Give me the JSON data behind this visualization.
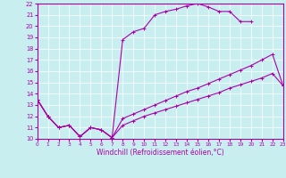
{
  "xlabel": "Windchill (Refroidissement éolien,°C)",
  "xlim": [
    0,
    23
  ],
  "ylim": [
    10,
    22
  ],
  "xticks": [
    0,
    1,
    2,
    3,
    4,
    5,
    6,
    7,
    8,
    9,
    10,
    11,
    12,
    13,
    14,
    15,
    16,
    17,
    18,
    19,
    20,
    21,
    22,
    23
  ],
  "yticks": [
    10,
    11,
    12,
    13,
    14,
    15,
    16,
    17,
    18,
    19,
    20,
    21,
    22
  ],
  "line_color": "#aa00aa",
  "bg_color": "#c8eef0",
  "line1_x": [
    0,
    1,
    2,
    3,
    4,
    5,
    6,
    7,
    8,
    9,
    10,
    11,
    12,
    13,
    14,
    15,
    16,
    17,
    18,
    19,
    20
  ],
  "line1_y": [
    13.5,
    12.0,
    11.0,
    11.2,
    10.2,
    11.0,
    10.8,
    10.1,
    18.8,
    19.5,
    19.8,
    21.0,
    21.3,
    21.5,
    21.8,
    22.0,
    21.7,
    21.3,
    21.3,
    20.4,
    20.4
  ],
  "line2_x": [
    0,
    1,
    2,
    3,
    4,
    5,
    6,
    7,
    8,
    9,
    10,
    11,
    12,
    13,
    14,
    15,
    16,
    17,
    18,
    19,
    20,
    21,
    22,
    23
  ],
  "line2_y": [
    13.5,
    12.0,
    11.0,
    11.2,
    10.2,
    11.0,
    10.8,
    10.1,
    11.8,
    12.2,
    12.6,
    13.0,
    13.4,
    13.8,
    14.2,
    14.5,
    14.9,
    15.3,
    15.7,
    16.1,
    16.5,
    17.0,
    17.5,
    14.7
  ],
  "line3_x": [
    0,
    1,
    2,
    3,
    4,
    5,
    6,
    7,
    8,
    9,
    10,
    11,
    12,
    13,
    14,
    15,
    16,
    17,
    18,
    19,
    20,
    21,
    22,
    23
  ],
  "line3_y": [
    13.5,
    12.0,
    11.0,
    11.2,
    10.2,
    11.0,
    10.8,
    10.1,
    11.2,
    11.6,
    12.0,
    12.3,
    12.6,
    12.9,
    13.2,
    13.5,
    13.8,
    14.1,
    14.5,
    14.8,
    15.1,
    15.4,
    15.8,
    14.7
  ]
}
